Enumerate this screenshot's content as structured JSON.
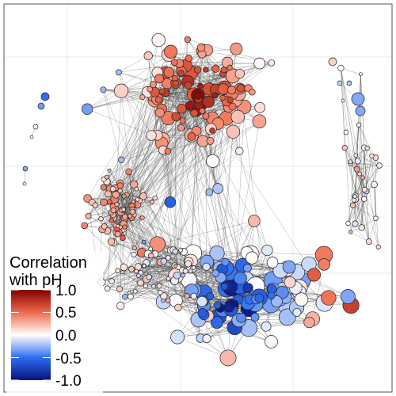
{
  "chart_data": {
    "type": "network",
    "legend": {
      "title_lines": [
        "Correlation",
        "with pH"
      ],
      "tick_labels": [
        "1.0",
        "0.5",
        "0.0",
        "-0.5",
        "-1.0"
      ],
      "tick_values": [
        1.0,
        0.5,
        0.0,
        -0.5,
        -1.0
      ],
      "range": [
        -1.0,
        1.0
      ],
      "colorscale": [
        {
          "v": -1.0,
          "color": "#08107e"
        },
        {
          "v": -0.5,
          "color": "#2e6ef0"
        },
        {
          "v": 0.0,
          "color": "#ffffff"
        },
        {
          "v": 0.5,
          "color": "#f06a4c"
        },
        {
          "v": 1.0,
          "color": "#800000"
        }
      ]
    },
    "grid": true,
    "axes_visible": false
  },
  "colors": {
    "panel_border": "#555555",
    "grid": "#ebebeb",
    "edge": "#444444",
    "node_stroke": "#222222"
  }
}
